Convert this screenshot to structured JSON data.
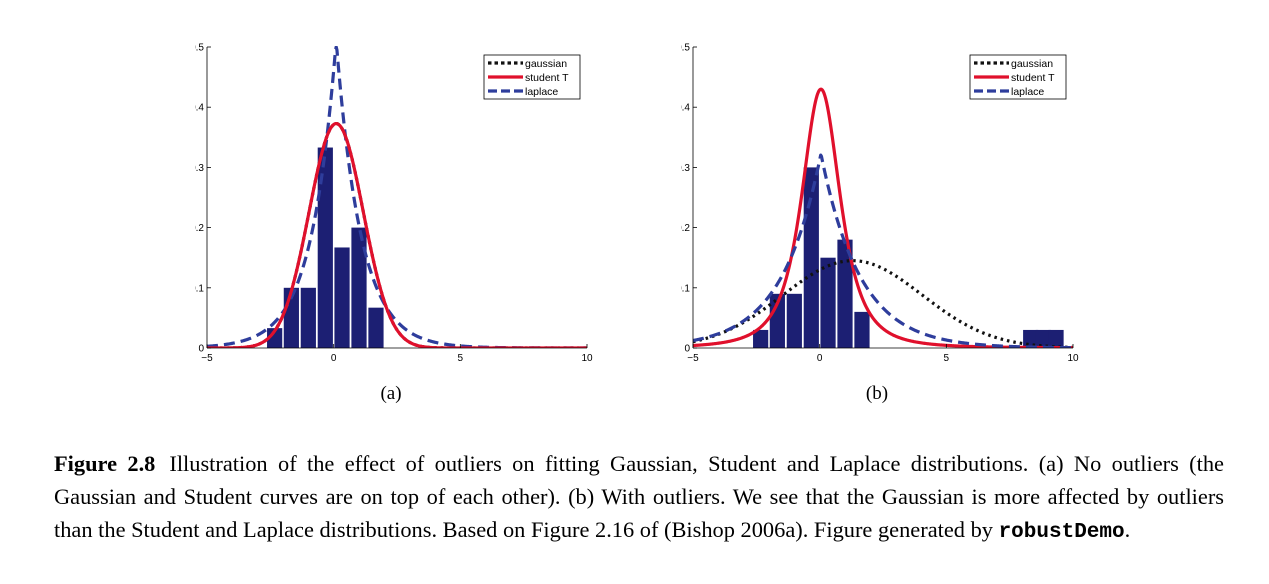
{
  "colors": {
    "gaussian": "#111111",
    "student": "#e0102c",
    "laplace": "#2e3d9c",
    "bars": "#1c1f73"
  },
  "chart_data": [
    {
      "id": "a",
      "type": "bar",
      "sublabel": "(a)",
      "xlim": [
        -5,
        10
      ],
      "ylim": [
        0,
        0.5
      ],
      "xticks": [
        -5,
        0,
        5,
        10
      ],
      "yticks": [
        0,
        0.1,
        0.2,
        0.3,
        0.4,
        0.5
      ],
      "xtick_labels": [
        "−5",
        "0",
        "5",
        "10"
      ],
      "ytick_labels": [
        "0",
        "0.1",
        "0.2",
        "0.3",
        "0.4",
        "0.5"
      ],
      "legend": {
        "position": "top-right",
        "entries": [
          "gaussian",
          "student T",
          "laplace"
        ]
      },
      "bars": {
        "centers": [
          -2.33,
          -1.67,
          -1.0,
          -0.33,
          0.33,
          1.0,
          1.67
        ],
        "heights": [
          0.033,
          0.1,
          0.1,
          0.333,
          0.167,
          0.2,
          0.067
        ],
        "width": 0.6
      },
      "curves": {
        "gaussian": {
          "kind": "normal",
          "mu": 0.1,
          "sigma": 1.07
        },
        "student": {
          "kind": "normal",
          "mu": 0.1,
          "sigma": 1.07
        },
        "laplace": {
          "kind": "laplace",
          "mu": 0.1,
          "b": 0.98,
          "peak_clip": 0.5
        }
      }
    },
    {
      "id": "b",
      "type": "bar",
      "sublabel": "(b)",
      "xlim": [
        -5,
        10
      ],
      "ylim": [
        0,
        0.5
      ],
      "xticks": [
        -5,
        0,
        5,
        10
      ],
      "yticks": [
        0,
        0.1,
        0.2,
        0.3,
        0.4,
        0.5
      ],
      "xtick_labels": [
        "−5",
        "0",
        "5",
        "10"
      ],
      "ytick_labels": [
        "0",
        "0.1",
        "0.2",
        "0.3",
        "0.4",
        "0.5"
      ],
      "legend": {
        "position": "top-right",
        "entries": [
          "gaussian",
          "student T",
          "laplace"
        ]
      },
      "bars": {
        "centers": [
          -2.33,
          -1.67,
          -1.0,
          -0.33,
          0.33,
          1.0,
          1.67,
          8.33,
          8.83,
          9.33
        ],
        "heights": [
          0.03,
          0.09,
          0.09,
          0.3,
          0.15,
          0.18,
          0.06,
          0.03,
          0.03,
          0.03
        ],
        "width": 0.6
      },
      "curves": {
        "gaussian": {
          "kind": "normal",
          "mu": 1.3,
          "sigma": 2.75
        },
        "student": {
          "kind": "studentt",
          "mu": 0.05,
          "sigma": 0.82,
          "nu": 2.2,
          "peak": 0.43
        },
        "laplace": {
          "kind": "laplace",
          "mu": 0.05,
          "b": 1.55
        }
      }
    }
  ],
  "caption": {
    "label": "Figure 2.8",
    "text_before_code": "Illustration of the effect of outliers on fitting Gaussian, Student and Laplace distributions. (a) No outliers (the Gaussian and Student curves are on top of each other). (b) With outliers. We see that the Gaussian is more affected by outliers than the Student and Laplace distributions. Based on Figure 2.16 of (Bishop 2006a). Figure generated by ",
    "code": "robustDemo",
    "text_after_code": "."
  }
}
